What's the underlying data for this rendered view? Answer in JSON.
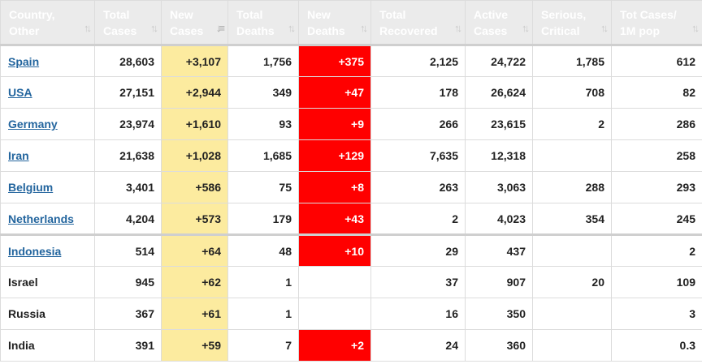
{
  "headers": [
    {
      "label": "Country,\nOther"
    },
    {
      "label": "Total\nCases"
    },
    {
      "label": "New\nCases"
    },
    {
      "label": "Total\nDeaths"
    },
    {
      "label": "New\nDeaths"
    },
    {
      "label": "Total\nRecovered"
    },
    {
      "label": "Active\nCases"
    },
    {
      "label": "Serious,\nCritical"
    },
    {
      "label": "Tot Cases/\n1M pop"
    }
  ],
  "sorted_column": "New Cases",
  "colors": {
    "header_bg": "#ebebeb",
    "new_cases_bg": "#fceb9f",
    "new_deaths_bg": "#ff0000",
    "link": "#23659e"
  },
  "rows": [
    {
      "country": "Spain",
      "link": true,
      "total_cases": "28,603",
      "new_cases": "+3,107",
      "total_deaths": "1,756",
      "new_deaths": "+375",
      "total_recovered": "2,125",
      "active_cases": "24,722",
      "serious_critical": "1,785",
      "tot_cases_1m": "612"
    },
    {
      "country": "USA",
      "link": true,
      "total_cases": "27,151",
      "new_cases": "+2,944",
      "total_deaths": "349",
      "new_deaths": "+47",
      "total_recovered": "178",
      "active_cases": "26,624",
      "serious_critical": "708",
      "tot_cases_1m": "82"
    },
    {
      "country": "Germany",
      "link": true,
      "total_cases": "23,974",
      "new_cases": "+1,610",
      "total_deaths": "93",
      "new_deaths": "+9",
      "total_recovered": "266",
      "active_cases": "23,615",
      "serious_critical": "2",
      "tot_cases_1m": "286"
    },
    {
      "country": "Iran",
      "link": true,
      "total_cases": "21,638",
      "new_cases": "+1,028",
      "total_deaths": "1,685",
      "new_deaths": "+129",
      "total_recovered": "7,635",
      "active_cases": "12,318",
      "serious_critical": "",
      "tot_cases_1m": "258"
    },
    {
      "country": "Belgium",
      "link": true,
      "total_cases": "3,401",
      "new_cases": "+586",
      "total_deaths": "75",
      "new_deaths": "+8",
      "total_recovered": "263",
      "active_cases": "3,063",
      "serious_critical": "288",
      "tot_cases_1m": "293"
    },
    {
      "country": "Netherlands",
      "link": true,
      "total_cases": "4,204",
      "new_cases": "+573",
      "total_deaths": "179",
      "new_deaths": "+43",
      "total_recovered": "2",
      "active_cases": "4,023",
      "serious_critical": "354",
      "tot_cases_1m": "245"
    },
    {
      "country": "Indonesia",
      "link": true,
      "total_cases": "514",
      "new_cases": "+64",
      "total_deaths": "48",
      "new_deaths": "+10",
      "total_recovered": "29",
      "active_cases": "437",
      "serious_critical": "",
      "tot_cases_1m": "2"
    },
    {
      "country": "Israel",
      "link": false,
      "total_cases": "945",
      "new_cases": "+62",
      "total_deaths": "1",
      "new_deaths": "",
      "total_recovered": "37",
      "active_cases": "907",
      "serious_critical": "20",
      "tot_cases_1m": "109"
    },
    {
      "country": "Russia",
      "link": false,
      "total_cases": "367",
      "new_cases": "+61",
      "total_deaths": "1",
      "new_deaths": "",
      "total_recovered": "16",
      "active_cases": "350",
      "serious_critical": "",
      "tot_cases_1m": "3"
    },
    {
      "country": "India",
      "link": false,
      "total_cases": "391",
      "new_cases": "+59",
      "total_deaths": "7",
      "new_deaths": "+2",
      "total_recovered": "24",
      "active_cases": "360",
      "serious_critical": "",
      "tot_cases_1m": "0.3"
    }
  ]
}
